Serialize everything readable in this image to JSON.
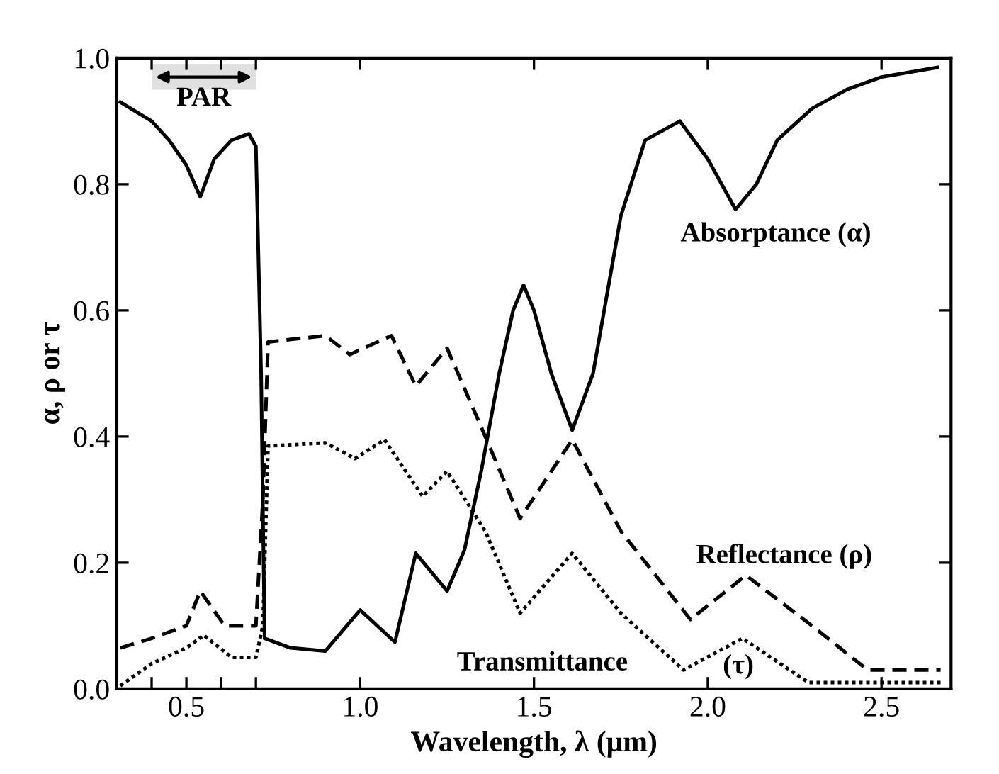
{
  "chart_data": {
    "type": "line",
    "xlabel": "Wavelength, λ (μm)",
    "ylabel": "α, ρ or τ",
    "xlim": [
      0.3,
      2.7
    ],
    "ylim": [
      0,
      1
    ],
    "xticks": [
      {
        "value": 0.4,
        "label": null
      },
      0.5,
      {
        "value": 0.6,
        "label": null
      },
      {
        "value": 0.7,
        "label": null
      },
      {
        "value": 1,
        "label": "1.0"
      },
      1.5,
      {
        "value": 2,
        "label": "2.0"
      },
      2.5
    ],
    "yticks": [
      {
        "value": 0,
        "label": "0.0"
      },
      0.2,
      0.4,
      0.6,
      0.8,
      {
        "value": 1,
        "label": "1.0"
      }
    ],
    "bands": [
      {
        "axis": "x",
        "from": 0.4,
        "to": 0.7,
        "label": "PAR",
        "color": "#000000"
      }
    ],
    "series": [
      {
        "color": "#000000",
        "line_style": "solid",
        "x": [
          0.31,
          0.4,
          0.45,
          0.5,
          0.54,
          0.58,
          0.63,
          0.68,
          0.7,
          0.715,
          0.725,
          0.8,
          0.9,
          1.0,
          1.1,
          1.16,
          1.25,
          1.3,
          1.35,
          1.4,
          1.44,
          1.47,
          1.5,
          1.55,
          1.61,
          1.67,
          1.75,
          1.82,
          1.92,
          2.0,
          2.08,
          2.14,
          2.2,
          2.3,
          2.4,
          2.5,
          2.66
        ],
        "values": [
          0.93,
          0.9,
          0.87,
          0.83,
          0.78,
          0.84,
          0.87,
          0.88,
          0.86,
          0.5,
          0.08,
          0.065,
          0.06,
          0.125,
          0.074,
          0.215,
          0.155,
          0.22,
          0.35,
          0.5,
          0.6,
          0.64,
          0.6,
          0.5,
          0.41,
          0.5,
          0.75,
          0.87,
          0.9,
          0.84,
          0.76,
          0.8,
          0.87,
          0.92,
          0.95,
          0.97,
          0.985
        ]
      },
      {
        "color": "#000000",
        "line_style": "dashed",
        "x": [
          0.31,
          0.4,
          0.5,
          0.54,
          0.61,
          0.7,
          0.72,
          0.735,
          0.9,
          0.97,
          1.09,
          1.16,
          1.25,
          1.36,
          1.46,
          1.61,
          1.75,
          1.95,
          2.11,
          2.3,
          2.46,
          2.67
        ],
        "values": [
          0.065,
          0.08,
          0.1,
          0.155,
          0.1,
          0.1,
          0.3,
          0.55,
          0.56,
          0.53,
          0.56,
          0.48,
          0.54,
          0.4,
          0.27,
          0.395,
          0.25,
          0.11,
          0.18,
          0.1,
          0.03,
          0.03
        ]
      },
      {
        "color": "#000000",
        "line_style": "dotted",
        "x": [
          0.31,
          0.4,
          0.5,
          0.55,
          0.63,
          0.7,
          0.72,
          0.735,
          0.9,
          0.985,
          1.07,
          1.18,
          1.25,
          1.36,
          1.46,
          1.61,
          1.75,
          1.93,
          2.1,
          2.29,
          2.67
        ],
        "values": [
          0.005,
          0.04,
          0.065,
          0.085,
          0.05,
          0.05,
          0.1,
          0.385,
          0.39,
          0.365,
          0.395,
          0.305,
          0.345,
          0.25,
          0.12,
          0.215,
          0.12,
          0.03,
          0.08,
          0.01,
          0.01
        ]
      }
    ],
    "annotations": [
      "Absorptance (α)",
      "Reflectance (ρ)",
      "Transmittance",
      "(τ)"
    ]
  }
}
